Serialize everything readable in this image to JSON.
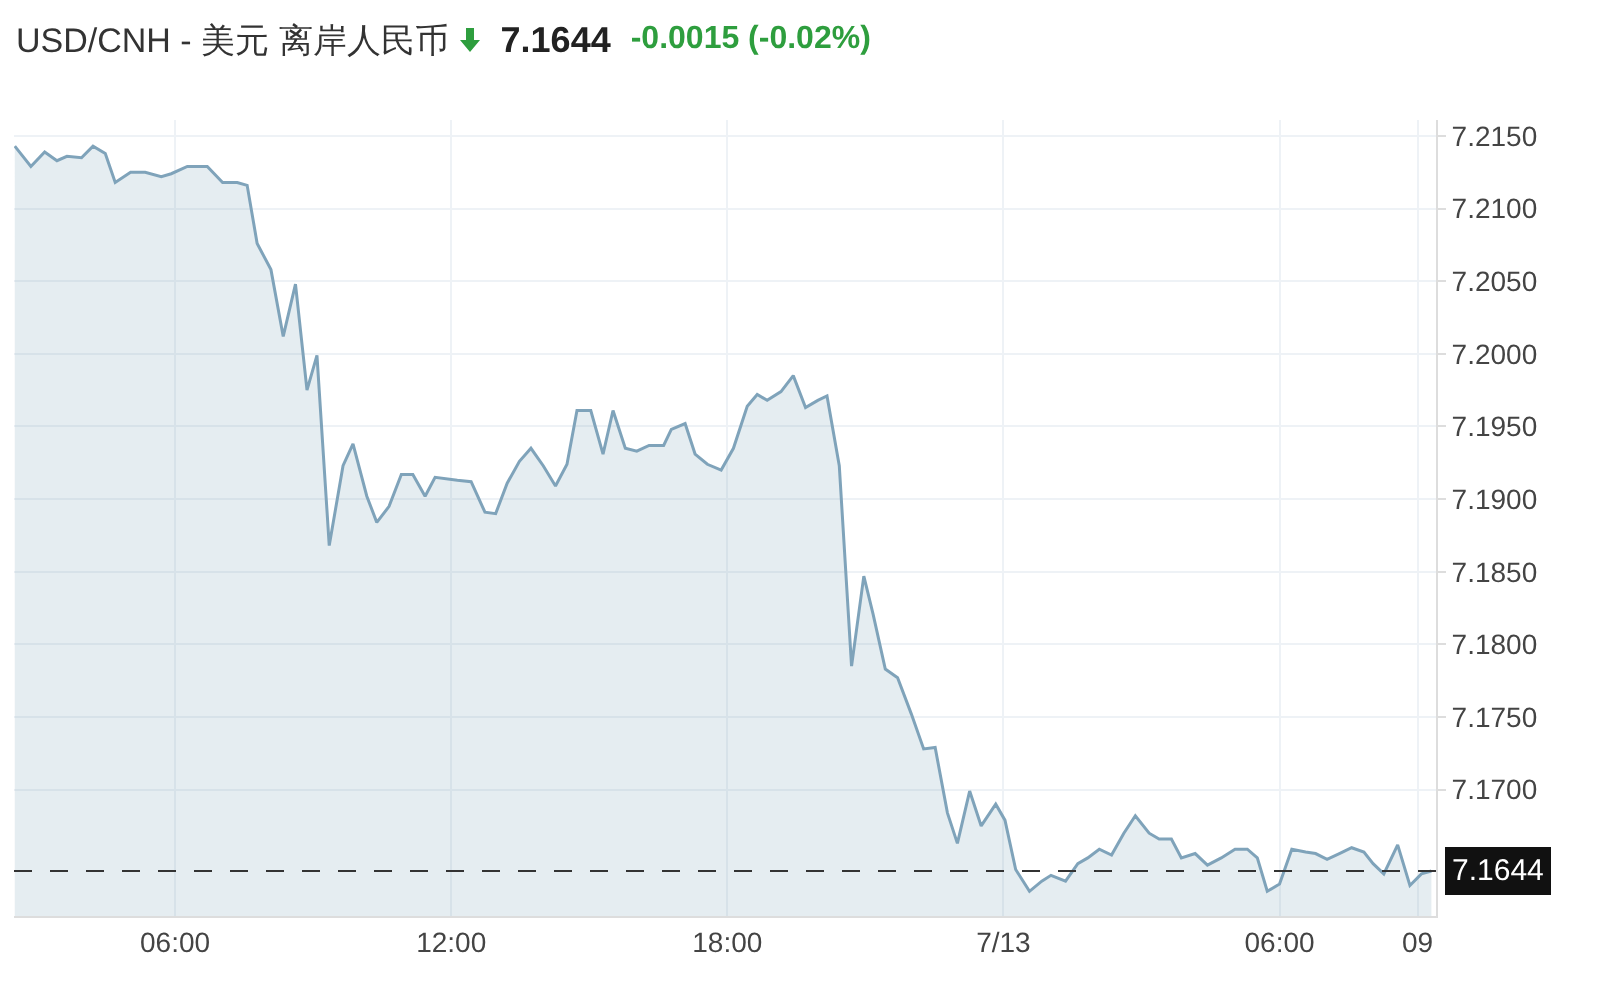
{
  "chart_data": {
    "type": "area",
    "title": "USD/CNH - 美元 离岸人民币",
    "annotations": [
      "7.1644",
      "-0.0015 (-0.02%)"
    ],
    "x": [
      "--07-12T02:31",
      "--07-12T02:52",
      "--07-12T03:10",
      "--07-12T03:26",
      "--07-12T03:39",
      "--07-12T03:58",
      "--07-12T04:13",
      "--07-12T04:29",
      "--07-12T04:42",
      "--07-12T05:02",
      "--07-12T05:21",
      "--07-12T05:42",
      "--07-12T05:55",
      "--07-12T06:16",
      "--07-12T06:42",
      "--07-12T07:02",
      "--07-12T07:21",
      "--07-12T07:34",
      "--07-12T07:47",
      "--07-12T08:05",
      "--07-12T08:21",
      "--07-12T08:37",
      "--07-12T08:52",
      "--07-12T09:05",
      "--07-12T09:21",
      "--07-12T09:39",
      "--07-12T09:52",
      "--07-12T10:10",
      "--07-12T10:23",
      "--07-12T10:39",
      "--07-12T10:55",
      "--07-12T11:10",
      "--07-12T11:26",
      "--07-12T11:39",
      "--07-12T12:08",
      "--07-12T12:26",
      "--07-12T12:44",
      "--07-12T12:58",
      "--07-12T13:13",
      "--07-12T13:29",
      "--07-12T13:44",
      "--07-12T14:00",
      "--07-12T14:16",
      "--07-12T14:31",
      "--07-12T14:44",
      "--07-12T15:02",
      "--07-12T15:18",
      "--07-12T15:31",
      "--07-12T15:47",
      "--07-12T16:02",
      "--07-12T16:18",
      "--07-12T16:37",
      "--07-12T16:47",
      "--07-12T17:05",
      "--07-12T17:18",
      "--07-12T17:34",
      "--07-12T17:52",
      "--07-12T18:08",
      "--07-12T18:26",
      "--07-12T18:39",
      "--07-12T18:52",
      "--07-12T19:10",
      "--07-12T19:26",
      "--07-12T19:42",
      "--07-12T19:58",
      "--07-12T20:10",
      "--07-12T20:26",
      "--07-12T20:42",
      "--07-12T20:58",
      "--07-12T21:10",
      "--07-12T21:26",
      "--07-12T21:42",
      "--07-12T22:00",
      "--07-12T22:16",
      "--07-12T22:31",
      "--07-12T22:47",
      "--07-12T23:00",
      "--07-12T23:16",
      "--07-12T23:31",
      "--07-12T23:50",
      "--07-13T00:02",
      "--07-13T00:16",
      "--07-13T00:34",
      "--07-13T00:50",
      "--07-13T01:02",
      "--07-13T01:21",
      "--07-13T01:37",
      "--07-13T01:50",
      "--07-13T02:05",
      "--07-13T02:21",
      "--07-13T02:37",
      "--07-13T02:52",
      "--07-13T03:10",
      "--07-13T03:23",
      "--07-13T03:39",
      "--07-13T03:52",
      "--07-13T04:10",
      "--07-13T04:26",
      "--07-13T04:44",
      "--07-13T05:02",
      "--07-13T05:18",
      "--07-13T05:31",
      "--07-13T05:44",
      "--07-13T06:00",
      "--07-13T06:16",
      "--07-13T06:34",
      "--07-13T06:47",
      "--07-13T07:02",
      "--07-13T07:18",
      "--07-13T07:34",
      "--07-13T07:50",
      "--07-13T08:02",
      "--07-13T08:16",
      "--07-13T08:34",
      "--07-13T08:50",
      "--07-13T09:05",
      "--07-13T09:18"
    ],
    "series": [
      {
        "color": "#7fa3ba",
        "values": [
          7.2143,
          7.2129,
          7.2139,
          7.2133,
          7.2136,
          7.2135,
          7.2143,
          7.2138,
          7.2118,
          7.2125,
          7.2125,
          7.2122,
          7.2124,
          7.2129,
          7.2129,
          7.2118,
          7.2118,
          7.2116,
          7.2076,
          7.2058,
          7.2012,
          7.2048,
          7.1975,
          7.1999,
          7.1868,
          7.1923,
          7.1938,
          7.1902,
          7.1884,
          7.1895,
          7.1917,
          7.1917,
          7.1902,
          7.1915,
          7.1913,
          7.1912,
          7.1891,
          7.189,
          7.1911,
          7.1926,
          7.1935,
          7.1923,
          7.1909,
          7.1924,
          7.1961,
          7.1961,
          7.1931,
          7.1961,
          7.1935,
          7.1933,
          7.1937,
          7.1937,
          7.1948,
          7.1952,
          7.1931,
          7.1924,
          7.192,
          7.1935,
          7.1964,
          7.1972,
          7.1968,
          7.1974,
          7.1985,
          7.1963,
          7.1968,
          7.1971,
          7.1923,
          7.1785,
          7.1847,
          7.1821,
          7.1783,
          7.1777,
          7.1752,
          7.1728,
          7.1729,
          7.1684,
          7.1663,
          7.1699,
          7.1675,
          7.169,
          7.1679,
          7.1645,
          7.163,
          7.1637,
          7.1641,
          7.1637,
          7.1649,
          7.1653,
          7.1659,
          7.1655,
          7.167,
          7.1682,
          7.167,
          7.1666,
          7.1666,
          7.1653,
          7.1656,
          7.1648,
          7.1653,
          7.1659,
          7.1659,
          7.1653,
          7.163,
          7.1635,
          7.1659,
          7.1657,
          7.1656,
          7.1652,
          7.1656,
          7.166,
          7.1657,
          7.1649,
          7.1642,
          7.1662,
          7.1634,
          7.1642,
          7.1644
        ]
      }
    ],
    "xlim": [
      "--07-12T02:30",
      "--07-13T09:24"
    ],
    "xticks": [
      {
        "value": "--07-12T06:00",
        "label": "06:00"
      },
      {
        "value": "--07-12T12:00",
        "label": "12:00"
      },
      {
        "value": "--07-12T18:00",
        "label": "18:00"
      },
      {
        "value": "--07-13T00:00",
        "label": "7/13"
      },
      {
        "value": "--07-13T06:00",
        "label": "06:00"
      },
      {
        "value": "--07-13T09:00",
        "label": "09"
      }
    ],
    "ylim": [
      7.1613,
      7.2161
    ],
    "yticks": [
      {
        "value": 7.17,
        "label": "7.1700"
      },
      {
        "value": 7.175,
        "label": "7.1750"
      },
      {
        "value": 7.18,
        "label": "7.1800"
      },
      {
        "value": 7.185,
        "label": "7.1850"
      },
      {
        "value": 7.19,
        "label": "7.1900"
      },
      {
        "value": 7.195,
        "label": "7.1950"
      },
      {
        "value": 7.2,
        "label": "7.2000"
      },
      {
        "value": 7.205,
        "label": "7.2050"
      },
      {
        "value": 7.21,
        "label": "7.2100"
      },
      {
        "value": 7.215,
        "label": "7.2150"
      }
    ],
    "ref_lines": [
      {
        "axis": "y",
        "value": 7.1644,
        "label": "7.1644",
        "color": "#333333",
        "line_style": "dashed"
      }
    ],
    "grid": true
  }
}
